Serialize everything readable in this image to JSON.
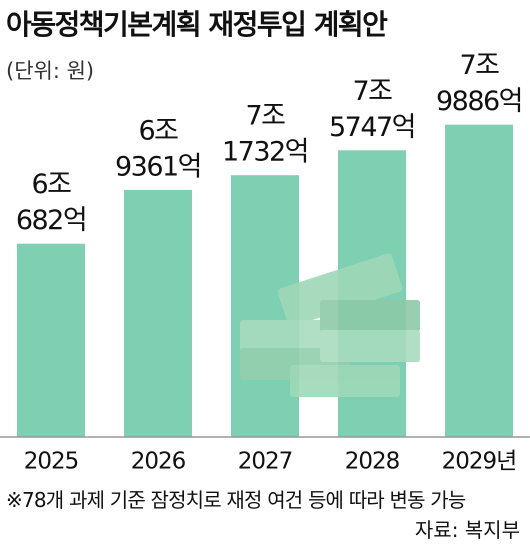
{
  "chart_data": {
    "type": "bar",
    "title": "아동정책기본계획 재정투입 계획안",
    "subtitle": "(단위: 원)",
    "categories": [
      "2025",
      "2026",
      "2027",
      "2028",
      "2029년"
    ],
    "values": [
      6068200000000,
      6936100000000,
      7173200000000,
      7574700000000,
      7988600000000
    ],
    "value_labels": [
      [
        "6조",
        "682억"
      ],
      [
        "6조",
        "9361억"
      ],
      [
        "7조",
        "1732억"
      ],
      [
        "7조",
        "5747억"
      ],
      [
        "7조",
        "9886억"
      ]
    ],
    "color": "#7fcfb3",
    "ylim": [
      2949000000000,
      10000000000000
    ],
    "note": "※78개 과제 기준 잠정치로 재정 여건 등에 따라 변동 가능",
    "source": "자료: 복지부"
  }
}
